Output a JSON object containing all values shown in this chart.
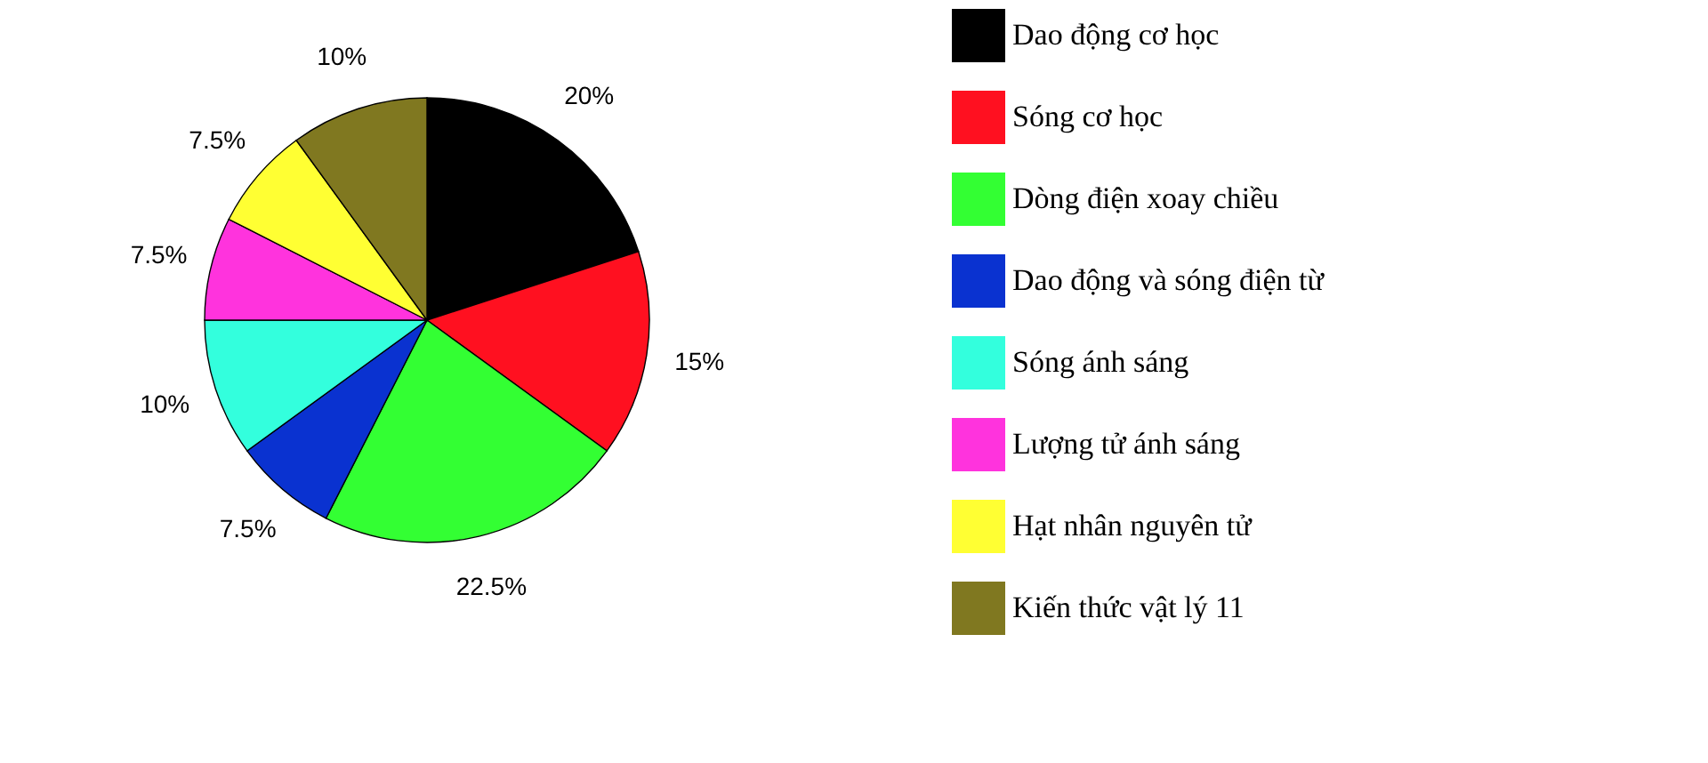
{
  "chart_data": {
    "type": "pie",
    "categories": [
      "Dao động cơ học",
      "Sóng cơ học",
      "Dòng điện xoay chiều",
      "Dao động và sóng điện từ",
      "Sóng ánh sáng",
      "Lượng tử ánh sáng",
      "Hạt nhân nguyên tử",
      "Kiến thức vật lý 11"
    ],
    "values": [
      20,
      15,
      22.5,
      7.5,
      10,
      7.5,
      7.5,
      10
    ],
    "value_labels": [
      "20%",
      "15%",
      "22.5%",
      "7.5%",
      "10%",
      "7.5%",
      "7.5%",
      "10%"
    ],
    "colors": [
      "#000000",
      "#ff1020",
      "#33ff33",
      "#0a32d0",
      "#33ffdd",
      "#ff33dd",
      "#ffff33",
      "#807820"
    ],
    "legend": "right"
  }
}
